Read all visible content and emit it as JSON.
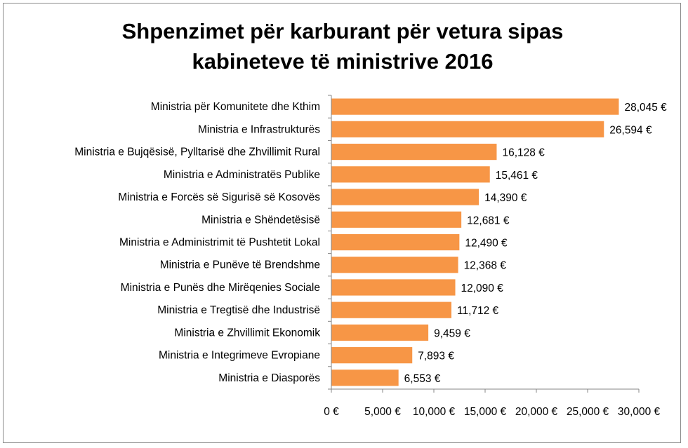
{
  "chart_data": {
    "type": "bar",
    "orientation": "horizontal",
    "title_lines": [
      "Shpenzimet për karburant për vetura sipas",
      "kabineteve të ministrive 2016"
    ],
    "categories": [
      "Ministria për Komunitete  dhe Kthim",
      "Ministria e  Infrastrukturës",
      "Ministria e  Bujqësisë, Pylltarisë dhe Zhvillimit Rural",
      "Ministria e  Administratës Publike",
      "Ministria e  Forcës së Sigurisë së Kosovës",
      "Ministria e  Shëndetësisë",
      "Ministria e  Administrimit  të Pushtetit Lokal",
      "Ministria e  Punëve të Brendshme",
      "Ministria e  Punës dhe Mirëqenies Sociale",
      "Ministria e  Tregtisë dhe Industrisë",
      "Ministria e  Zhvillimit  Ekonomik",
      "Ministria e  Integrimeve Evropiane",
      "Ministria e  Diasporës"
    ],
    "values": [
      28045,
      26594,
      16128,
      15461,
      14390,
      12681,
      12490,
      12368,
      12090,
      11712,
      9459,
      7893,
      6553
    ],
    "value_labels": [
      "28,045 €",
      "26,594 €",
      "16,128 €",
      "15,461 €",
      "14,390 €",
      "12,681 €",
      "12,490 €",
      "12,368 €",
      "12,090 €",
      "11,712 €",
      "9,459 €",
      "7,893 €",
      "6,553 €"
    ],
    "xlim": [
      0,
      30000
    ],
    "x_ticks": [
      0,
      5000,
      10000,
      15000,
      20000,
      25000,
      30000
    ],
    "x_tick_labels": [
      "0 €",
      "5,000 €",
      "10,000 €",
      "15,000 €",
      "20,000 €",
      "25,000 €",
      "30,000 €"
    ],
    "bar_color": "#f79646",
    "axis_color": "#868686",
    "grid": false,
    "legend": "none"
  }
}
